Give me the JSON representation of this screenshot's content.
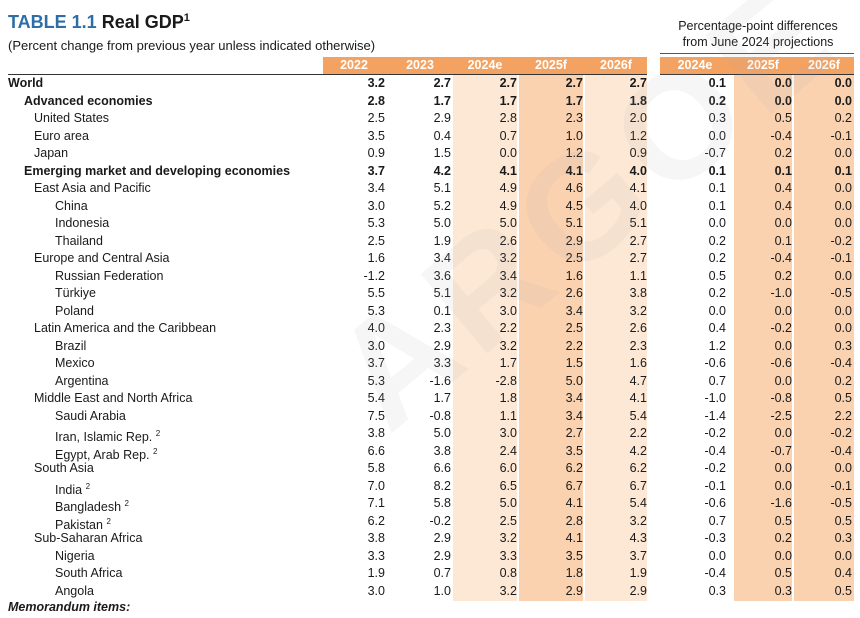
{
  "title": {
    "label": "TABLE 1.1",
    "text": "Real GDP",
    "footnote": "1"
  },
  "subtitle": "(Percent change from previous year unless indicated otherwise)",
  "pp_header": {
    "line1": "Percentage-point differences",
    "line2": "from June 2024 projections"
  },
  "columns": [
    "2022",
    "2023",
    "2024e",
    "2025f",
    "2026f"
  ],
  "pp_columns": [
    "2024e",
    "2025f",
    "2026f"
  ],
  "rows": [
    {
      "label": "World",
      "fn": "",
      "level": 0,
      "bold": true,
      "values": [
        "3.2",
        "2.7",
        "2.7",
        "2.7",
        "2.7"
      ],
      "pp": [
        "0.1",
        "0.0",
        "0.0"
      ]
    },
    {
      "label": "Advanced economies",
      "fn": "",
      "level": 1,
      "bold": true,
      "values": [
        "2.8",
        "1.7",
        "1.7",
        "1.7",
        "1.8"
      ],
      "pp": [
        "0.2",
        "0.0",
        "0.0"
      ]
    },
    {
      "label": "United States",
      "fn": "",
      "level": 2,
      "bold": false,
      "values": [
        "2.5",
        "2.9",
        "2.8",
        "2.3",
        "2.0"
      ],
      "pp": [
        "0.3",
        "0.5",
        "0.2"
      ]
    },
    {
      "label": "Euro area",
      "fn": "",
      "level": 2,
      "bold": false,
      "values": [
        "3.5",
        "0.4",
        "0.7",
        "1.0",
        "1.2"
      ],
      "pp": [
        "0.0",
        "-0.4",
        "-0.1"
      ]
    },
    {
      "label": "Japan",
      "fn": "",
      "level": 2,
      "bold": false,
      "values": [
        "0.9",
        "1.5",
        "0.0",
        "1.2",
        "0.9"
      ],
      "pp": [
        "-0.7",
        "0.2",
        "0.0"
      ]
    },
    {
      "label": "Emerging market and developing economies",
      "fn": "",
      "level": 1,
      "bold": true,
      "values": [
        "3.7",
        "4.2",
        "4.1",
        "4.1",
        "4.0"
      ],
      "pp": [
        "0.1",
        "0.1",
        "0.1"
      ]
    },
    {
      "label": "East Asia and Pacific",
      "fn": "",
      "level": 2,
      "bold": false,
      "values": [
        "3.4",
        "5.1",
        "4.9",
        "4.6",
        "4.1"
      ],
      "pp": [
        "0.1",
        "0.4",
        "0.0"
      ]
    },
    {
      "label": "China",
      "fn": "",
      "level": 3,
      "bold": false,
      "values": [
        "3.0",
        "5.2",
        "4.9",
        "4.5",
        "4.0"
      ],
      "pp": [
        "0.1",
        "0.4",
        "0.0"
      ]
    },
    {
      "label": "Indonesia",
      "fn": "",
      "level": 3,
      "bold": false,
      "values": [
        "5.3",
        "5.0",
        "5.0",
        "5.1",
        "5.1"
      ],
      "pp": [
        "0.0",
        "0.0",
        "0.0"
      ]
    },
    {
      "label": "Thailand",
      "fn": "",
      "level": 3,
      "bold": false,
      "values": [
        "2.5",
        "1.9",
        "2.6",
        "2.9",
        "2.7"
      ],
      "pp": [
        "0.2",
        "0.1",
        "-0.2"
      ]
    },
    {
      "label": "Europe and Central Asia",
      "fn": "",
      "level": 2,
      "bold": false,
      "values": [
        "1.6",
        "3.4",
        "3.2",
        "2.5",
        "2.7"
      ],
      "pp": [
        "0.2",
        "-0.4",
        "-0.1"
      ]
    },
    {
      "label": "Russian Federation",
      "fn": "",
      "level": 3,
      "bold": false,
      "values": [
        "-1.2",
        "3.6",
        "3.4",
        "1.6",
        "1.1"
      ],
      "pp": [
        "0.5",
        "0.2",
        "0.0"
      ]
    },
    {
      "label": "Türkiye",
      "fn": "",
      "level": 3,
      "bold": false,
      "values": [
        "5.5",
        "5.1",
        "3.2",
        "2.6",
        "3.8"
      ],
      "pp": [
        "0.2",
        "-1.0",
        "-0.5"
      ]
    },
    {
      "label": "Poland",
      "fn": "",
      "level": 3,
      "bold": false,
      "values": [
        "5.3",
        "0.1",
        "3.0",
        "3.4",
        "3.2"
      ],
      "pp": [
        "0.0",
        "0.0",
        "0.0"
      ]
    },
    {
      "label": "Latin America and the Caribbean",
      "fn": "",
      "level": 2,
      "bold": false,
      "values": [
        "4.0",
        "2.3",
        "2.2",
        "2.5",
        "2.6"
      ],
      "pp": [
        "0.4",
        "-0.2",
        "0.0"
      ]
    },
    {
      "label": "Brazil",
      "fn": "",
      "level": 3,
      "bold": false,
      "values": [
        "3.0",
        "2.9",
        "3.2",
        "2.2",
        "2.3"
      ],
      "pp": [
        "1.2",
        "0.0",
        "0.3"
      ]
    },
    {
      "label": "Mexico",
      "fn": "",
      "level": 3,
      "bold": false,
      "values": [
        "3.7",
        "3.3",
        "1.7",
        "1.5",
        "1.6"
      ],
      "pp": [
        "-0.6",
        "-0.6",
        "-0.4"
      ]
    },
    {
      "label": "Argentina",
      "fn": "",
      "level": 3,
      "bold": false,
      "values": [
        "5.3",
        "-1.6",
        "-2.8",
        "5.0",
        "4.7"
      ],
      "pp": [
        "0.7",
        "0.0",
        "0.2"
      ]
    },
    {
      "label": "Middle East and North Africa",
      "fn": "",
      "level": 2,
      "bold": false,
      "values": [
        "5.4",
        "1.7",
        "1.8",
        "3.4",
        "4.1"
      ],
      "pp": [
        "-1.0",
        "-0.8",
        "0.5"
      ]
    },
    {
      "label": "Saudi Arabia",
      "fn": "",
      "level": 3,
      "bold": false,
      "values": [
        "7.5",
        "-0.8",
        "1.1",
        "3.4",
        "5.4"
      ],
      "pp": [
        "-1.4",
        "-2.5",
        "2.2"
      ]
    },
    {
      "label": "Iran, Islamic Rep.",
      "fn": "2",
      "level": 3,
      "bold": false,
      "values": [
        "3.8",
        "5.0",
        "3.0",
        "2.7",
        "2.2"
      ],
      "pp": [
        "-0.2",
        "0.0",
        "-0.2"
      ]
    },
    {
      "label": "Egypt, Arab Rep.",
      "fn": "2",
      "level": 3,
      "bold": false,
      "values": [
        "6.6",
        "3.8",
        "2.4",
        "3.5",
        "4.2"
      ],
      "pp": [
        "-0.4",
        "-0.7",
        "-0.4"
      ]
    },
    {
      "label": "South Asia",
      "fn": "",
      "level": 2,
      "bold": false,
      "values": [
        "5.8",
        "6.6",
        "6.0",
        "6.2",
        "6.2"
      ],
      "pp": [
        "-0.2",
        "0.0",
        "0.0"
      ]
    },
    {
      "label": "India",
      "fn": "2",
      "level": 3,
      "bold": false,
      "values": [
        "7.0",
        "8.2",
        "6.5",
        "6.7",
        "6.7"
      ],
      "pp": [
        "-0.1",
        "0.0",
        "-0.1"
      ]
    },
    {
      "label": "Bangladesh",
      "fn": "2",
      "level": 3,
      "bold": false,
      "values": [
        "7.1",
        "5.8",
        "5.0",
        "4.1",
        "5.4"
      ],
      "pp": [
        "-0.6",
        "-1.6",
        "-0.5"
      ]
    },
    {
      "label": "Pakistan",
      "fn": "2",
      "level": 3,
      "bold": false,
      "values": [
        "6.2",
        "-0.2",
        "2.5",
        "2.8",
        "3.2"
      ],
      "pp": [
        "0.7",
        "0.5",
        "0.5"
      ]
    },
    {
      "label": "Sub-Saharan Africa",
      "fn": "",
      "level": 2,
      "bold": false,
      "values": [
        "3.8",
        "2.9",
        "3.2",
        "4.1",
        "4.3"
      ],
      "pp": [
        "-0.3",
        "0.2",
        "0.3"
      ]
    },
    {
      "label": "Nigeria",
      "fn": "",
      "level": 3,
      "bold": false,
      "values": [
        "3.3",
        "2.9",
        "3.3",
        "3.5",
        "3.7"
      ],
      "pp": [
        "0.0",
        "0.0",
        "0.0"
      ]
    },
    {
      "label": "South Africa",
      "fn": "",
      "level": 3,
      "bold": false,
      "values": [
        "1.9",
        "0.7",
        "0.8",
        "1.8",
        "1.9"
      ],
      "pp": [
        "-0.4",
        "0.5",
        "0.4"
      ]
    },
    {
      "label": "Angola",
      "fn": "",
      "level": 3,
      "bold": false,
      "values": [
        "3.0",
        "1.0",
        "3.2",
        "2.9",
        "2.9"
      ],
      "pp": [
        "0.3",
        "0.3",
        "0.5"
      ]
    }
  ],
  "memo": "Memorandum items:",
  "watermark": "ARGOE"
}
